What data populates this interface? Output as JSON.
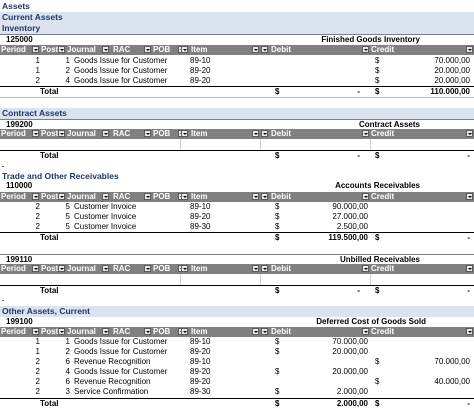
{
  "page_title": "Assets",
  "columns": [
    "Period",
    "Postir",
    "Journal",
    "RAC",
    "POB",
    "Item",
    "Debit",
    "Credit"
  ],
  "total_label": "Total",
  "currency": "$",
  "sections": [
    {
      "title": "Current Assets",
      "subtitle": "Inventory",
      "account": "125000",
      "account_name": "Finished Goods Inventory",
      "rows": [
        {
          "period": "1",
          "posting": "1",
          "journal": "Goods Issue for Customer",
          "item": "89-10",
          "debit": "",
          "credit": "70.000,00"
        },
        {
          "period": "1",
          "posting": "2",
          "journal": "Goods Issue for Customer",
          "item": "89-20",
          "debit": "",
          "credit": "20.000,00"
        },
        {
          "period": "2",
          "posting": "4",
          "journal": "Goods Issue for Customer",
          "item": "89-20",
          "debit": "",
          "credit": "20.000,00"
        }
      ],
      "total_debit": "-",
      "total_credit": "110.000,00"
    },
    {
      "title": "Contract Assets",
      "account": "199200",
      "account_name": "Contract Assets",
      "rows": [],
      "total_debit": "-",
      "total_credit": "-"
    },
    {
      "title": "Trade and Other Receivables",
      "account": "110000",
      "account_name": "Accounts Receivables",
      "rows": [
        {
          "period": "2",
          "posting": "5",
          "journal": "Customer Invoice",
          "item": "89-10",
          "debit": "90.000,00",
          "credit": ""
        },
        {
          "period": "2",
          "posting": "5",
          "journal": "Customer Invoice",
          "item": "89-20",
          "debit": "27.000,00",
          "credit": ""
        },
        {
          "period": "2",
          "posting": "5",
          "journal": "Customer Invoice",
          "item": "89-30",
          "debit": "2.500,00",
          "credit": ""
        }
      ],
      "total_debit": "119.500,00",
      "total_credit": "-"
    },
    {
      "title": "",
      "account": "199110",
      "account_name": "Unbilled Receivables",
      "rows": [],
      "total_debit": "-",
      "total_credit": "-"
    },
    {
      "title": "Other Assets, Current",
      "account": "199100",
      "account_name": "Deferred Cost of Goods Sold",
      "rows": [
        {
          "period": "1",
          "posting": "1",
          "journal": "Goods Issue for Customer",
          "item": "89-10",
          "debit": "70.000,00",
          "credit": ""
        },
        {
          "period": "1",
          "posting": "2",
          "journal": "Goods Issue for Customer",
          "item": "89-20",
          "debit": "20.000,00",
          "credit": ""
        },
        {
          "period": "2",
          "posting": "6",
          "journal": "Revenue Recognition",
          "item": "89-10",
          "debit": "",
          "credit": "70.000,00"
        },
        {
          "period": "2",
          "posting": "4",
          "journal": "Goods Issue for Customer",
          "item": "89-20",
          "debit": "20.000,00",
          "credit": ""
        },
        {
          "period": "2",
          "posting": "6",
          "journal": "Revenue Recognition",
          "item": "89-20",
          "debit": "",
          "credit": "40.000,00"
        },
        {
          "period": "2",
          "posting": "3",
          "journal": "Service Confirmation",
          "item": "89-30",
          "debit": "2.000,00",
          "credit": ""
        }
      ],
      "total_debit": "2.000,00",
      "total_credit": "-"
    }
  ]
}
